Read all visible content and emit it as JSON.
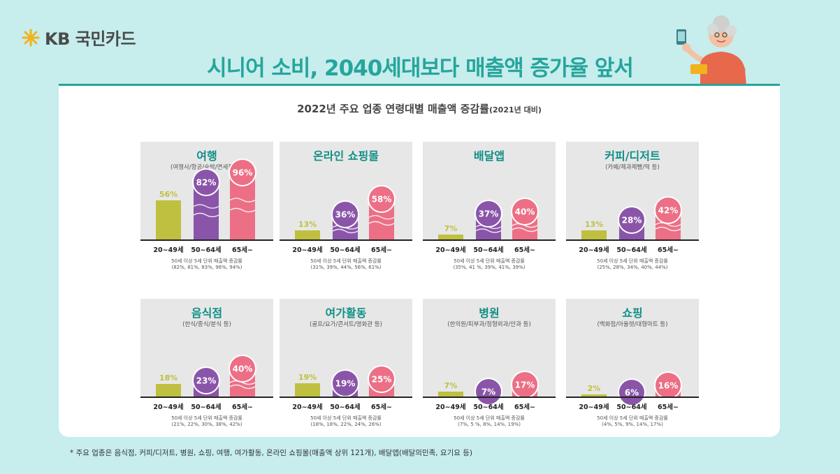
{
  "brand": {
    "name": "KB 국민카드"
  },
  "headline": "시니어 소비, 2040세대보다 매출액 증가율 앞서",
  "subtitle": {
    "main": "2022년 주요 업종 연령대별 매출액 증감률",
    "note": "(2021년 대비)"
  },
  "colors": {
    "young": "#bfc040",
    "mid": "#8a55a9",
    "senior": "#ec6f86",
    "accent": "#26a59c"
  },
  "footnote": "* 주요 업종은 음식점, 커피/디저트, 병원, 쇼핑, 여행, 여가활동, 온라인 쇼핑몰(매출액 상위 121개), 배달앱(배달의민족, 요기요 등)",
  "chart_data": [
    {
      "type": "bar",
      "title": "여행",
      "subtitle": "(여행사/항공/숙박/면세점 등)",
      "categories": [
        "20~49세",
        "50~64세",
        "65세~"
      ],
      "values": [
        56,
        82,
        96
      ],
      "value_labels": [
        "56%",
        "82%",
        "96%"
      ],
      "note_label": "50세 이상 5세 단위 매출액 증감률",
      "note_values": "(82%, 81%, 83%, 98%, 94%)"
    },
    {
      "type": "bar",
      "title": "온라인 쇼핑몰",
      "subtitle": "",
      "categories": [
        "20~49세",
        "50~64세",
        "65세~"
      ],
      "values": [
        13,
        36,
        58
      ],
      "value_labels": [
        "13%",
        "36%",
        "58%"
      ],
      "note_label": "50세 이상 5세 단위 매출액 증감률",
      "note_values": "(31%, 39%, 44%, 56%, 61%)"
    },
    {
      "type": "bar",
      "title": "배달앱",
      "subtitle": "",
      "categories": [
        "20~49세",
        "50~64세",
        "65세~"
      ],
      "values": [
        7,
        37,
        40
      ],
      "value_labels": [
        "7%",
        "37%",
        "40%"
      ],
      "note_label": "50세 이상 5세 단위 매출액 증감률",
      "note_values": "(35%, 41 %, 39%, 41%, 39%)"
    },
    {
      "type": "bar",
      "title": "커피/디저트",
      "subtitle": "(카페/제과제빵/떡 등)",
      "categories": [
        "20~49세",
        "50~64세",
        "65세~"
      ],
      "values": [
        13,
        28,
        42
      ],
      "value_labels": [
        "13%",
        "28%",
        "42%"
      ],
      "note_label": "50세 이상 5세 단위 매출액 증감률",
      "note_values": "(25%, 28%, 34%, 40%, 44%)"
    },
    {
      "type": "bar",
      "title": "음식점",
      "subtitle": "(한식/중식/분식 등)",
      "categories": [
        "20~49세",
        "50~64세",
        "65세~"
      ],
      "values": [
        18,
        23,
        40
      ],
      "value_labels": [
        "18%",
        "23%",
        "40%"
      ],
      "note_label": "50세 이상 5세 단위 매출액 증감률",
      "note_values": "(21%, 22%, 30%, 38%, 42%)"
    },
    {
      "type": "bar",
      "title": "여가활동",
      "subtitle": "(골프/요가/콘서트/영화관 등)",
      "categories": [
        "20~49세",
        "50~64세",
        "65세~"
      ],
      "values": [
        19,
        19,
        25
      ],
      "value_labels": [
        "19%",
        "19%",
        "25%"
      ],
      "note_label": "50세 이상 5세 단위 매출액 증감률",
      "note_values": "(18%, 18%, 22%, 24%, 26%)"
    },
    {
      "type": "bar",
      "title": "병원",
      "subtitle": "(한의원/피부과/정형외과/안과 등)",
      "categories": [
        "20~49세",
        "50~64세",
        "65세~"
      ],
      "values": [
        7,
        7,
        17
      ],
      "value_labels": [
        "7%",
        "7%",
        "17%"
      ],
      "note_label": "50세 이상 5세 단위 매출액 증감률",
      "note_values": "(7%, 5 %, 8%, 14%, 19%)"
    },
    {
      "type": "bar",
      "title": "쇼핑",
      "subtitle": "(백화점/아울렛/대형마트 등)",
      "categories": [
        "20~49세",
        "50~64세",
        "65세~"
      ],
      "values": [
        2,
        6,
        16
      ],
      "value_labels": [
        "2%",
        "6%",
        "16%"
      ],
      "note_label": "50세 이상 5세 단위 매출액 증감률",
      "note_values": "(4%, 5%, 9%, 14%, 17%)"
    }
  ]
}
